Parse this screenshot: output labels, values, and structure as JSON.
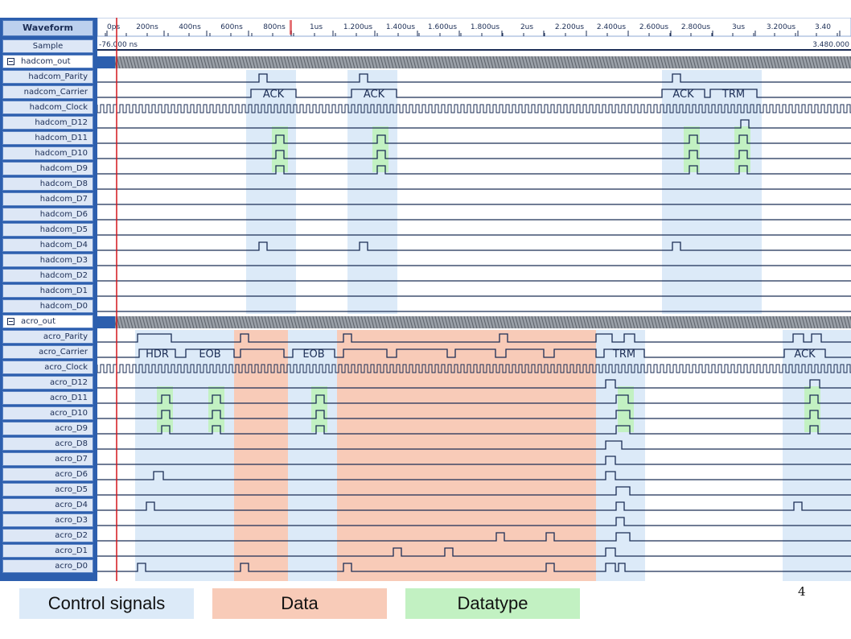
{
  "window": {
    "header_label": "Waveform",
    "sample_label": "Sample",
    "start_time": "-76.000 ns",
    "end_time": "3.480.000"
  },
  "ruler": {
    "ticks": [
      "0ps",
      "200ns",
      "400ns",
      "600ns",
      "800ns",
      "1us",
      "1.200us",
      "1.400us",
      "1.600us",
      "1.800us",
      "2us",
      "2.200us",
      "2.400us",
      "2.600us",
      "2.800us",
      "3us",
      "3.200us",
      "3.40"
    ]
  },
  "groups": [
    {
      "name": "hadcom_out",
      "signals": [
        "hadcom_Parity",
        "nadcom_Carrier",
        "hadcom_Clock",
        "hadcom_D12",
        "hadcom_D11",
        "hadcom_D10",
        "hadcom_D9",
        "hadcom_D8",
        "hadcom_D7",
        "hadcom_D6",
        "hadcom_D5",
        "hadcom_D4",
        "hadcom_D3",
        "hadcom_D2",
        "hadcom_D1",
        "hadcom_D0"
      ]
    },
    {
      "name": "acro_out",
      "signals": [
        "acro_Parity",
        "acro_Carrier",
        "acro_Clock",
        "acro_D12",
        "acro_D11",
        "acro_D10",
        "acro_D9",
        "acro_D8",
        "acro_D7",
        "acro_D6",
        "acro_D5",
        "acro_D4",
        "acro_D3",
        "acro_D2",
        "acro_D1",
        "acro_D0"
      ]
    }
  ],
  "segments": {
    "hadcom": [
      "ACK",
      "ACK",
      "ACK",
      "TRM"
    ],
    "acro": [
      "HDR",
      "EOB",
      "EOB",
      "TRM",
      "ACK"
    ]
  },
  "legend": {
    "control": "Control signals",
    "data": "Data",
    "datatype": "Datatype"
  },
  "colors": {
    "control": "#dceaf8",
    "data": "#f8cbb8",
    "datatype": "#c2f1c2",
    "cursor": "#d4161c",
    "trace": "#1b2d55"
  },
  "page_number": "4"
}
